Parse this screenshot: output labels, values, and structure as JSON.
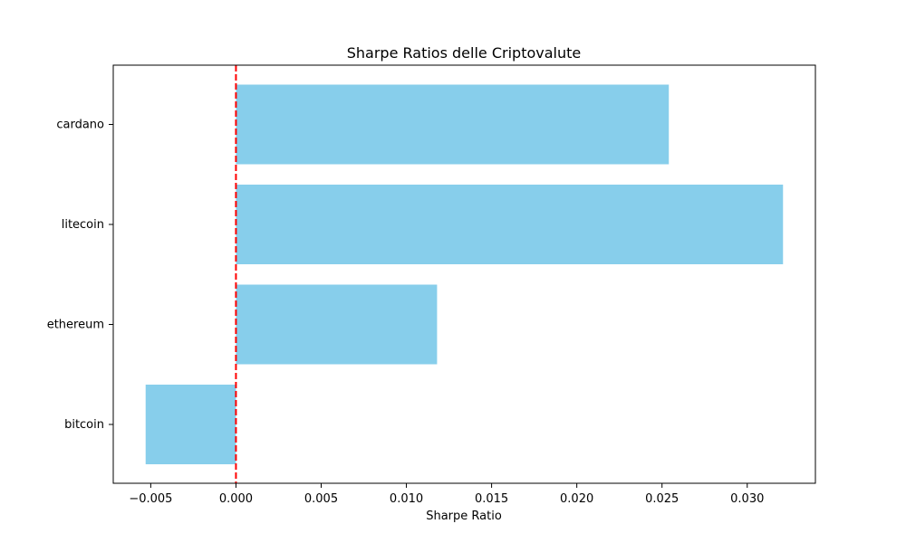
{
  "chart_data": {
    "type": "bar",
    "orientation": "horizontal",
    "title": "Sharpe Ratios delle Criptovalute",
    "xlabel": "Sharpe Ratio",
    "ylabel": "",
    "categories": [
      "bitcoin",
      "ethereum",
      "litecoin",
      "cardano"
    ],
    "values": [
      -0.0053,
      0.0118,
      0.0321,
      0.0254
    ],
    "xlim": [
      -0.0072,
      0.034
    ],
    "xticks": [
      -0.005,
      0.0,
      0.005,
      0.01,
      0.015,
      0.02,
      0.025,
      0.03
    ],
    "xtick_labels": [
      "−0.005",
      "0.000",
      "0.005",
      "0.010",
      "0.015",
      "0.020",
      "0.025",
      "0.030"
    ],
    "bar_color": "#87ceeb",
    "reference_line": {
      "x": 0.0,
      "color": "#ff0000",
      "style": "dashed"
    },
    "grid": false,
    "legend": "none"
  }
}
